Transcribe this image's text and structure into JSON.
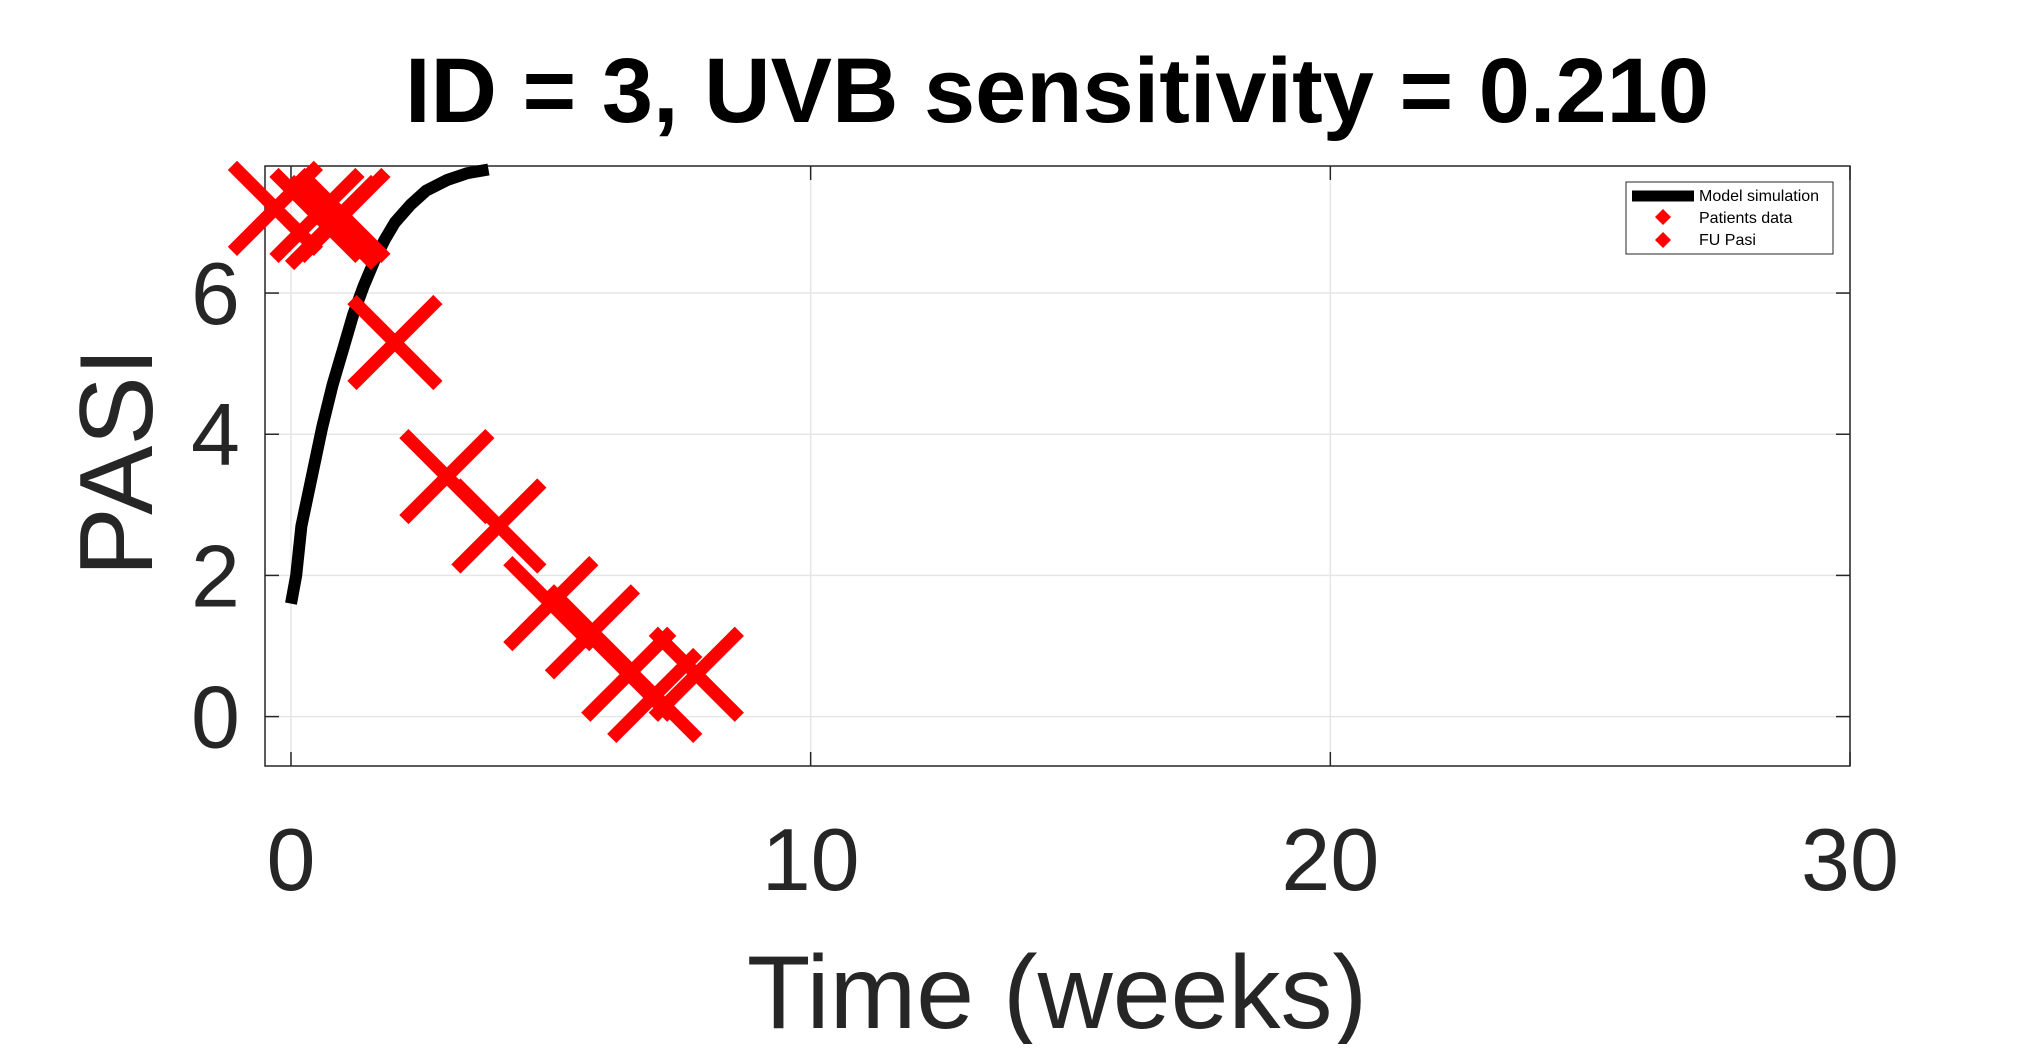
{
  "chart_data": {
    "type": "scatter",
    "title": "ID = 3, UVB sensitivity = 0.210",
    "xlabel": "Time (weeks)",
    "ylabel": "PASI",
    "xlim": [
      -0.5,
      30
    ],
    "ylim": [
      -0.7,
      7.8
    ],
    "x_ticks": [
      0,
      10,
      20,
      30
    ],
    "y_ticks": [
      0,
      2,
      4,
      6
    ],
    "x_tick_labels": [
      "0",
      "10",
      "20",
      "30"
    ],
    "y_tick_labels": [
      "0",
      "2",
      "4",
      "6"
    ],
    "grid": true,
    "legend": {
      "placement": "top-right",
      "entries": [
        "Model simulation",
        "Patients data",
        "FU Pasi"
      ]
    },
    "colors": {
      "model": "#000000",
      "patients": "#ff0000",
      "fu": "#ff0000",
      "grid": "#e6e6e6",
      "axis": "#262626"
    },
    "series": [
      {
        "name": "Model simulation",
        "kind": "line",
        "points": [
          [
            0.0,
            1.6
          ],
          [
            0.1,
            2.0
          ],
          [
            0.2,
            2.7
          ],
          [
            0.4,
            3.4
          ],
          [
            0.6,
            4.1
          ],
          [
            0.8,
            4.7
          ],
          [
            1.0,
            5.2
          ],
          [
            1.2,
            5.7
          ],
          [
            1.4,
            6.1
          ],
          [
            1.6,
            6.45
          ],
          [
            1.8,
            6.75
          ],
          [
            2.0,
            7.0
          ],
          [
            2.3,
            7.25
          ],
          [
            2.6,
            7.45
          ],
          [
            3.0,
            7.6
          ],
          [
            3.4,
            7.7
          ],
          [
            3.8,
            7.75
          ]
        ]
      },
      {
        "name": "Patients data",
        "kind": "marker",
        "points": [
          [
            -0.3,
            7.2
          ],
          [
            0.5,
            7.1
          ],
          [
            0.8,
            7.0
          ],
          [
            1.0,
            7.1
          ],
          [
            2.0,
            5.3
          ],
          [
            3.0,
            3.4
          ],
          [
            4.0,
            2.7
          ],
          [
            5.0,
            1.6
          ],
          [
            5.8,
            1.2
          ],
          [
            6.5,
            0.6
          ],
          [
            7.0,
            0.3
          ],
          [
            7.8,
            0.6
          ]
        ]
      }
    ]
  }
}
